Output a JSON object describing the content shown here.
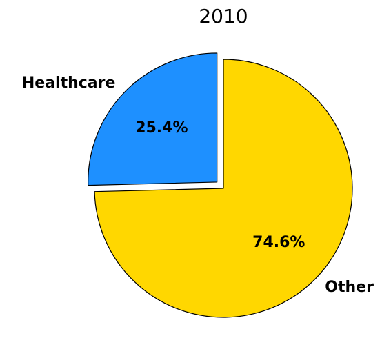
{
  "chart_data": {
    "type": "pie",
    "title": "2010",
    "categories": [
      "Healthcare",
      "Other"
    ],
    "values": [
      25.4,
      74.6
    ],
    "value_labels": [
      "25.4%",
      "74.6%"
    ],
    "colors": [
      "#1E90FF",
      "#FFD700"
    ],
    "edge_color": "#000000",
    "start_angle_deg": 90,
    "direction": "counterclockwise",
    "exploded": [
      "Healthcare"
    ]
  }
}
